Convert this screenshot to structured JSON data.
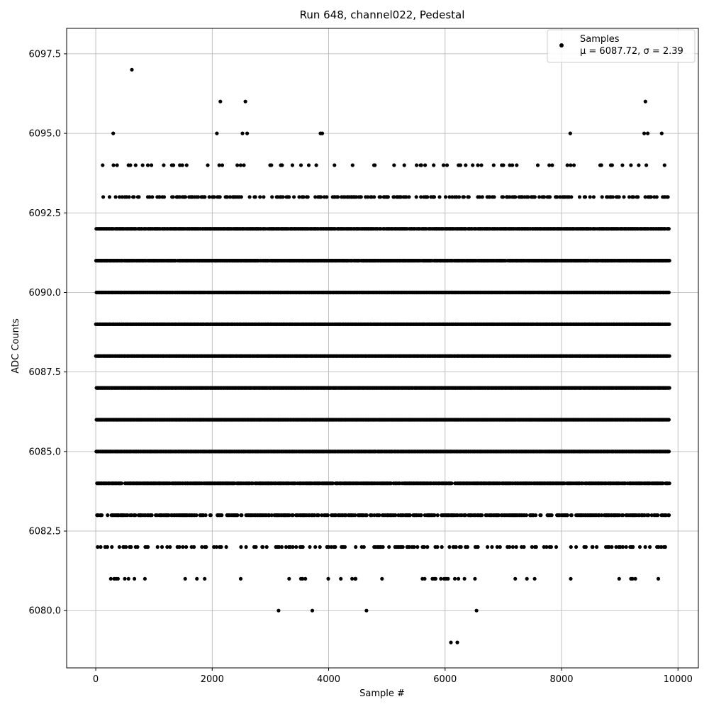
{
  "chart_data": {
    "type": "scatter",
    "title": "Run 648, channel022, Pedestal",
    "xlabel": "Sample #",
    "ylabel": "ADC Counts",
    "xlim": [
      -500,
      10350
    ],
    "ylim": [
      6078.2,
      6098.3
    ],
    "xticks": [
      0,
      2000,
      4000,
      6000,
      8000,
      10000
    ],
    "xtick_labels": [
      "0",
      "2000",
      "4000",
      "6000",
      "8000",
      "10000"
    ],
    "yticks": [
      6080.0,
      6082.5,
      6085.0,
      6087.5,
      6090.0,
      6092.5,
      6095.0,
      6097.5
    ],
    "ytick_labels": [
      "6080.0",
      "6082.5",
      "6085.0",
      "6087.5",
      "6090.0",
      "6092.5",
      "6095.0",
      "6097.5"
    ],
    "grid": true,
    "legend": {
      "placement": "top-right",
      "entries": [
        {
          "marker": "black-dot",
          "line1": "Samples",
          "line2": "μ = 6087.72, σ = 2.39"
        }
      ]
    },
    "marker_color": "#000000",
    "series": [
      {
        "name": "Samples",
        "x_start": 0,
        "x_end": 9850,
        "n_samples": 9850,
        "mean": 6087.72,
        "sigma": 2.39,
        "level_coverage": {
          "6086": 1.0,
          "6087": 1.0,
          "6088": 1.0,
          "6089": 1.0,
          "6085": 0.99,
          "6090": 0.99,
          "6091": 0.97,
          "6084": 0.88,
          "6092": 0.88,
          "6083": 0.55,
          "6093": 0.3,
          "6082": 0.18,
          "6094": 0.07,
          "6081": 0.05
        },
        "outliers": [
          [
            620,
            6097
          ],
          [
            2140,
            6096
          ],
          [
            2570,
            6096
          ],
          [
            9440,
            6096
          ],
          [
            300,
            6095
          ],
          [
            2080,
            6095
          ],
          [
            2520,
            6095
          ],
          [
            2600,
            6095
          ],
          [
            3860,
            6095
          ],
          [
            3890,
            6095
          ],
          [
            8150,
            6095
          ],
          [
            9420,
            6095
          ],
          [
            9480,
            6095
          ],
          [
            9720,
            6095
          ],
          [
            3140,
            6080
          ],
          [
            3720,
            6080
          ],
          [
            4650,
            6080
          ],
          [
            6540,
            6080
          ],
          [
            6100,
            6079
          ],
          [
            6210,
            6079
          ]
        ]
      }
    ]
  }
}
